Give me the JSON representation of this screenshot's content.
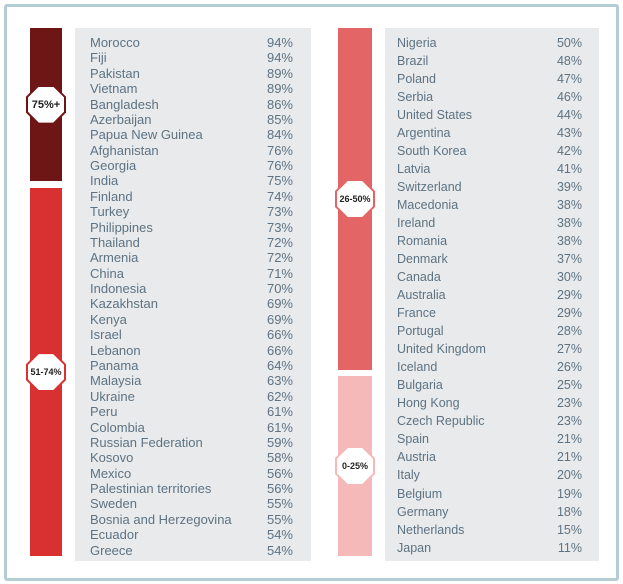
{
  "chart_data": {
    "type": "table",
    "groups": [
      {
        "label": "75%+",
        "color": "#6e1515",
        "rows": [
          [
            "Morocco",
            "94%"
          ],
          [
            "Fiji",
            "94%"
          ],
          [
            "Pakistan",
            "89%"
          ],
          [
            "Vietnam",
            "89%"
          ],
          [
            "Bangladesh",
            "86%"
          ],
          [
            "Azerbaijan",
            "85%"
          ],
          [
            "Papua New Guinea",
            "84%"
          ],
          [
            "Afghanistan",
            "76%"
          ],
          [
            "Georgia",
            "76%"
          ],
          [
            "India",
            "75%"
          ]
        ]
      },
      {
        "label": "51-74%",
        "color": "#d93131",
        "rows": [
          [
            "Finland",
            "74%"
          ],
          [
            "Turkey",
            "73%"
          ],
          [
            "Philippines",
            "73%"
          ],
          [
            "Thailand",
            "72%"
          ],
          [
            "Armenia",
            "72%"
          ],
          [
            "China",
            "71%"
          ],
          [
            "Indonesia",
            "70%"
          ],
          [
            "Kazakhstan",
            "69%"
          ],
          [
            "Kenya",
            "69%"
          ],
          [
            "Israel",
            "66%"
          ],
          [
            "Lebanon",
            "66%"
          ],
          [
            "Panama",
            "64%"
          ],
          [
            "Malaysia",
            "63%"
          ],
          [
            "Ukraine",
            "62%"
          ],
          [
            "Peru",
            "61%"
          ],
          [
            "Colombia",
            "61%"
          ],
          [
            "Russian Federation",
            "59%"
          ],
          [
            "Kosovo",
            "58%"
          ],
          [
            "Mexico",
            "56%"
          ],
          [
            "Palestinian territories",
            "56%"
          ],
          [
            "Sweden",
            "55%"
          ],
          [
            "Bosnia and Herzegovina",
            "55%"
          ],
          [
            "Ecuador",
            "54%"
          ],
          [
            "Greece",
            "54%"
          ]
        ]
      },
      {
        "label": "26-50%",
        "color": "#e46565",
        "rows": [
          [
            "Nigeria",
            "50%"
          ],
          [
            "Brazil",
            "48%"
          ],
          [
            "Poland",
            "47%"
          ],
          [
            "Serbia",
            "46%"
          ],
          [
            "United States",
            "44%"
          ],
          [
            "Argentina",
            "43%"
          ],
          [
            "South Korea",
            "42%"
          ],
          [
            "Latvia",
            "41%"
          ],
          [
            "Switzerland",
            "39%"
          ],
          [
            "Macedonia",
            "38%"
          ],
          [
            "Ireland",
            "38%"
          ],
          [
            "Romania",
            "38%"
          ],
          [
            "Denmark",
            "37%"
          ],
          [
            "Canada",
            "30%"
          ],
          [
            "Australia",
            "29%"
          ],
          [
            "France",
            "29%"
          ],
          [
            "Portugal",
            "28%"
          ],
          [
            "United Kingdom",
            "27%"
          ],
          [
            "Iceland",
            "26%"
          ]
        ]
      },
      {
        "label": "0-25%",
        "color": "#f6b9b9",
        "rows": [
          [
            "Bulgaria",
            "25%"
          ],
          [
            "Hong Kong",
            "23%"
          ],
          [
            "Czech Republic",
            "23%"
          ],
          [
            "Spain",
            "21%"
          ],
          [
            "Austria",
            "21%"
          ],
          [
            "Italy",
            "20%"
          ],
          [
            "Belgium",
            "19%"
          ],
          [
            "Germany",
            "18%"
          ],
          [
            "Netherlands",
            "15%"
          ],
          [
            "Japan",
            "11%"
          ]
        ]
      }
    ]
  }
}
